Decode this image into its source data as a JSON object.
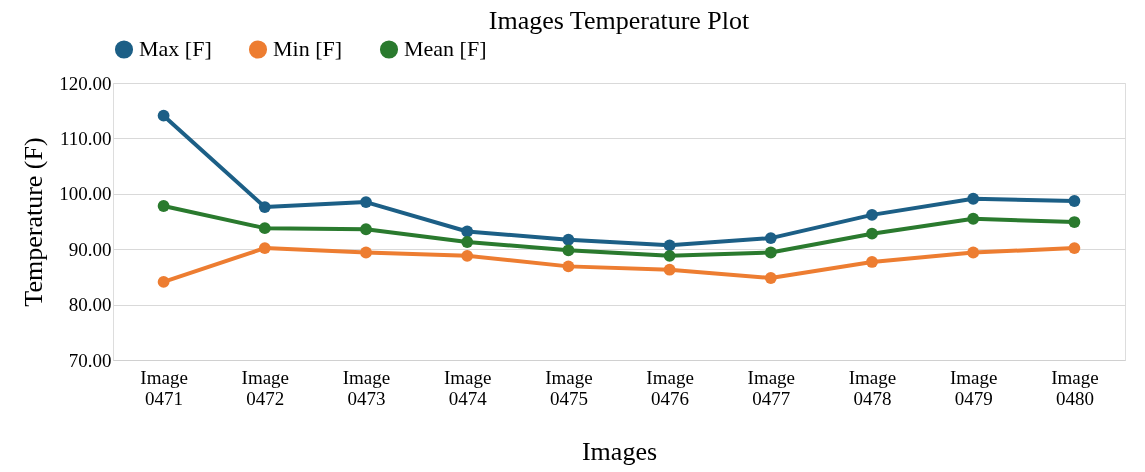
{
  "chart_data": {
    "type": "line",
    "title": "Images Temperature Plot",
    "xlabel": "Images",
    "ylabel": "Temperature (F)",
    "categories": [
      "Image 0471",
      "Image 0472",
      "Image 0473",
      "Image 0474",
      "Image 0475",
      "Image 0476",
      "Image 0477",
      "Image 0478",
      "Image 0479",
      "Image 0480"
    ],
    "series": [
      {
        "name": "Max [F]",
        "color": "#1c5f86",
        "values": [
          114.1,
          97.6,
          98.5,
          93.2,
          91.7,
          90.7,
          92.0,
          96.2,
          99.1,
          98.7
        ]
      },
      {
        "name": "Min [F]",
        "color": "#ed7d31",
        "values": [
          84.1,
          90.2,
          89.4,
          88.8,
          86.9,
          86.3,
          84.8,
          87.7,
          89.4,
          90.2
        ]
      },
      {
        "name": "Mean [F]",
        "color": "#2a7a2e",
        "values": [
          97.8,
          93.8,
          93.6,
          91.3,
          89.8,
          88.8,
          89.4,
          92.8,
          95.5,
          94.9
        ]
      }
    ],
    "ylim": [
      70,
      120
    ],
    "yticks": [
      {
        "value": 70,
        "label": "70.00"
      },
      {
        "value": 80,
        "label": "80.00"
      },
      {
        "value": 90,
        "label": "90.00"
      },
      {
        "value": 100,
        "label": "100.00"
      },
      {
        "value": 110,
        "label": "110.00"
      },
      {
        "value": 120,
        "label": "120.00"
      }
    ],
    "grid": "y",
    "legend": "top",
    "marker": "circle",
    "line_style": "solid"
  }
}
